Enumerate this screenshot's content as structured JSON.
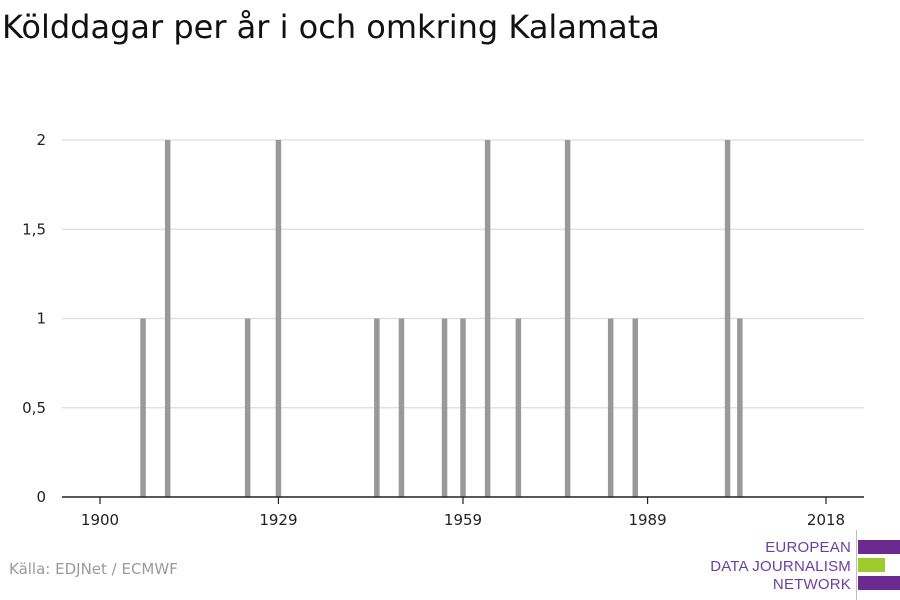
{
  "title": "Kölddagar per år i och omkring Kalamata",
  "source": "Källa: EDJNet / ECMWF",
  "logo": {
    "line1": "EUROPEAN",
    "line2": "DATA JOURNALISM",
    "line3": "NETWORK",
    "colors": {
      "purple": "#6b2a8f",
      "green": "#9ccc2c",
      "text": "#6b3fa0"
    }
  },
  "colors": {
    "bar": "#999999",
    "grid": "#dddddd",
    "axis": "#222222"
  },
  "chart_data": {
    "type": "bar",
    "title": "Kölddagar per år i och omkring Kalamata",
    "xlabel": "",
    "ylabel": "",
    "xlim": [
      1900,
      2018
    ],
    "ylim": [
      0,
      2
    ],
    "grid": true,
    "x_ticks": [
      1900,
      1929,
      1959,
      1989,
      2018
    ],
    "x_tick_labels": [
      "1900",
      "1929",
      "1959",
      "1989",
      "2018"
    ],
    "y_ticks": [
      0,
      0.5,
      1,
      1.5,
      2
    ],
    "y_tick_labels": [
      "0",
      "0,5",
      "1",
      "1,5",
      "2"
    ],
    "bar_color": "#999999",
    "x": [
      1907,
      1911,
      1924,
      1929,
      1945,
      1949,
      1956,
      1959,
      1963,
      1968,
      1976,
      1983,
      1987,
      2002,
      2004
    ],
    "values": [
      1,
      2,
      1,
      2,
      1,
      1,
      1,
      1,
      2,
      1,
      2,
      1,
      1,
      2,
      1
    ]
  }
}
